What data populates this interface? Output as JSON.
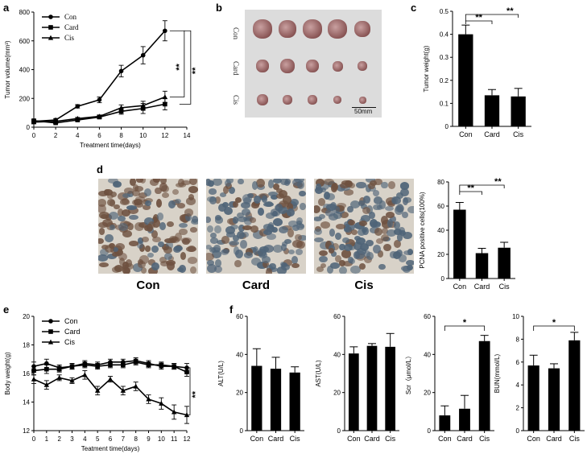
{
  "panels": {
    "a": "a",
    "b": "b",
    "c": "c",
    "d": "d",
    "e": "e",
    "f": "f"
  },
  "photo_b": {
    "rows": [
      "Con",
      "Card",
      "Cis"
    ],
    "scale": "50mm"
  },
  "histology_d": {
    "labels": [
      "Con",
      "Card",
      "Cis"
    ]
  },
  "colors": {
    "ink": "#000000",
    "photo_bg": "#dcdcdc",
    "tissue_bg": "#d8d2c8"
  },
  "chart_data": [
    {
      "id": "a",
      "type": "line",
      "xlabel": "Treatment time(days)",
      "ylabel": "Tumor volume(mm³)",
      "xlim": [
        0,
        14
      ],
      "ylim": [
        0,
        800
      ],
      "xticks": [
        0,
        2,
        4,
        6,
        8,
        10,
        12,
        14
      ],
      "yticks": [
        0,
        200,
        400,
        600,
        800
      ],
      "legend": "top-left",
      "series": [
        {
          "name": "Con",
          "marker": "circle",
          "x": [
            0,
            2,
            4,
            6,
            8,
            10,
            12
          ],
          "values": [
            40,
            50,
            145,
            190,
            390,
            500,
            670
          ],
          "err": [
            8,
            10,
            12,
            20,
            40,
            60,
            70
          ]
        },
        {
          "name": "Card",
          "marker": "square",
          "x": [
            0,
            2,
            4,
            6,
            8,
            10,
            12
          ],
          "values": [
            45,
            30,
            50,
            70,
            110,
            130,
            160
          ],
          "err": [
            8,
            6,
            8,
            10,
            20,
            35,
            40
          ]
        },
        {
          "name": "Cis",
          "marker": "triangle",
          "x": [
            0,
            2,
            4,
            6,
            8,
            10,
            12
          ],
          "values": [
            35,
            40,
            60,
            75,
            135,
            150,
            210
          ],
          "err": [
            8,
            6,
            8,
            10,
            20,
            30,
            40
          ]
        }
      ],
      "significance": [
        {
          "label": "**"
        },
        {
          "label": "**"
        }
      ]
    },
    {
      "id": "c",
      "type": "bar",
      "categories": [
        "Con",
        "Card",
        "Cis"
      ],
      "values": [
        0.4,
        0.135,
        0.13
      ],
      "err": [
        0.04,
        0.025,
        0.035
      ],
      "ylabel": "Tumor weight(g)",
      "ylim": [
        0,
        0.5
      ],
      "yticks": [
        0,
        0.1,
        0.2,
        0.3,
        0.4,
        0.5
      ],
      "significance": [
        {
          "label": "**"
        },
        {
          "label": "**"
        }
      ]
    },
    {
      "id": "d",
      "type": "bar",
      "categories": [
        "Con",
        "Card",
        "Cis"
      ],
      "values": [
        57,
        21,
        25.5
      ],
      "err": [
        6,
        4,
        4.5
      ],
      "ylabel": "PCNA positive cells(100%)",
      "ylim": [
        0,
        80
      ],
      "yticks": [
        0,
        20,
        40,
        60,
        80
      ],
      "significance": [
        {
          "label": "**"
        },
        {
          "label": "**"
        }
      ]
    },
    {
      "id": "e",
      "type": "line",
      "xlabel": "Teatment time(days)",
      "ylabel": "Body weight(g)",
      "xlim": [
        0,
        12
      ],
      "ylim": [
        12,
        20
      ],
      "xticks": [
        0,
        1,
        2,
        3,
        4,
        5,
        6,
        7,
        8,
        9,
        10,
        11,
        12
      ],
      "yticks": [
        12,
        14,
        16,
        18,
        20
      ],
      "legend": "top-left",
      "series": [
        {
          "name": "Con",
          "marker": "circle",
          "x": [
            0,
            1,
            2,
            3,
            4,
            5,
            6,
            7,
            8,
            9,
            10,
            11,
            12
          ],
          "values": [
            16.5,
            16.7,
            16.4,
            16.5,
            16.7,
            16.6,
            16.8,
            16.8,
            16.9,
            16.7,
            16.5,
            16.5,
            16.4
          ],
          "err": [
            0.3,
            0.3,
            0.2,
            0.2,
            0.2,
            0.2,
            0.2,
            0.2,
            0.2,
            0.2,
            0.2,
            0.2,
            0.3
          ]
        },
        {
          "name": "Card",
          "marker": "square",
          "x": [
            0,
            1,
            2,
            3,
            4,
            5,
            6,
            7,
            8,
            9,
            10,
            11,
            12
          ],
          "values": [
            16.2,
            16.3,
            16.3,
            16.5,
            16.6,
            16.5,
            16.6,
            16.6,
            16.8,
            16.6,
            16.6,
            16.5,
            16.1
          ],
          "err": [
            0.3,
            0.3,
            0.2,
            0.2,
            0.2,
            0.2,
            0.2,
            0.2,
            0.2,
            0.2,
            0.2,
            0.2,
            0.3
          ]
        },
        {
          "name": "Cis",
          "marker": "triangle",
          "x": [
            0,
            1,
            2,
            3,
            4,
            5,
            6,
            7,
            8,
            9,
            10,
            11,
            12
          ],
          "values": [
            15.6,
            15.2,
            15.7,
            15.5,
            15.9,
            14.8,
            15.6,
            14.8,
            15.1,
            14.2,
            13.9,
            13.3,
            13.1
          ],
          "err": [
            0.3,
            0.3,
            0.2,
            0.2,
            0.3,
            0.3,
            0.2,
            0.3,
            0.3,
            0.3,
            0.4,
            0.5,
            0.6
          ]
        }
      ],
      "significance": [
        {
          "label": "**"
        }
      ]
    },
    {
      "id": "f1",
      "type": "bar",
      "categories": [
        "Con",
        "Card",
        "Cis"
      ],
      "values": [
        34,
        32.5,
        30.5
      ],
      "err": [
        9,
        6,
        3
      ],
      "ylabel": "ALT(U/L)",
      "ylim": [
        0,
        60
      ],
      "yticks": [
        0,
        20,
        40,
        60
      ]
    },
    {
      "id": "f2",
      "type": "bar",
      "categories": [
        "Con",
        "Card",
        "Cis"
      ],
      "values": [
        40.5,
        44.5,
        44
      ],
      "err": [
        3.5,
        1.2,
        7
      ],
      "ylabel": "AST(U/L)",
      "ylim": [
        0,
        60
      ],
      "yticks": [
        0,
        20,
        40,
        60
      ]
    },
    {
      "id": "f3",
      "type": "bar",
      "categories": [
        "Con",
        "Card",
        "Cis"
      ],
      "values": [
        8,
        11.5,
        47
      ],
      "err": [
        5,
        7,
        3
      ],
      "ylabel": "Scr（μmol/L）",
      "ylim": [
        0,
        60
      ],
      "yticks": [
        0,
        20,
        40,
        60
      ],
      "significance": [
        {
          "label": "*"
        }
      ]
    },
    {
      "id": "f4",
      "type": "bar",
      "categories": [
        "Con",
        "Card",
        "Cis"
      ],
      "values": [
        5.7,
        5.45,
        7.9
      ],
      "err": [
        0.9,
        0.4,
        0.7
      ],
      "ylabel": "BUN(mmol/L)",
      "ylim": [
        0,
        10
      ],
      "yticks": [
        0,
        2,
        4,
        6,
        8,
        10
      ],
      "significance": [
        {
          "label": "*"
        }
      ]
    }
  ]
}
